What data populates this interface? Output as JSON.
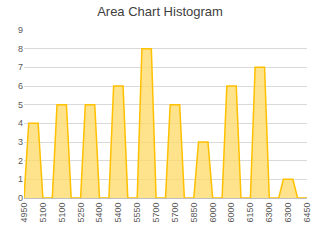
{
  "chart_data": {
    "type": "area",
    "title": "Area Chart Histogram",
    "categories": [
      "4950",
      null,
      null,
      null,
      "5100",
      null,
      null,
      null,
      "5100",
      null,
      null,
      null,
      "5250",
      null,
      null,
      null,
      "5400",
      null,
      null,
      null,
      "5400",
      null,
      null,
      null,
      "5550",
      null,
      null,
      null,
      "5700",
      null,
      null,
      null,
      "5700",
      null,
      null,
      null,
      "5850",
      null,
      null,
      null,
      "6000",
      null,
      null,
      null,
      "6000",
      null,
      null,
      null,
      "6150",
      null,
      null,
      null,
      "6300",
      null,
      null,
      null,
      "6300",
      null,
      null,
      null,
      "6450"
    ],
    "values": [
      0,
      4,
      4,
      4,
      0,
      0,
      0,
      5,
      5,
      5,
      0,
      0,
      0,
      5,
      5,
      5,
      0,
      0,
      0,
      6,
      6,
      6,
      0,
      0,
      0,
      8,
      8,
      8,
      0,
      0,
      0,
      5,
      5,
      5,
      0,
      0,
      0,
      3,
      3,
      3,
      0,
      0,
      0,
      6,
      6,
      6,
      0,
      0,
      0,
      7,
      7,
      7,
      0,
      0,
      0,
      1,
      1,
      1,
      0,
      0,
      0
    ],
    "color": "#ffc000",
    "ylim": [
      0,
      9
    ],
    "yticks": [
      0,
      1,
      2,
      3,
      4,
      5,
      6,
      7,
      8,
      9
    ],
    "grid": true
  }
}
